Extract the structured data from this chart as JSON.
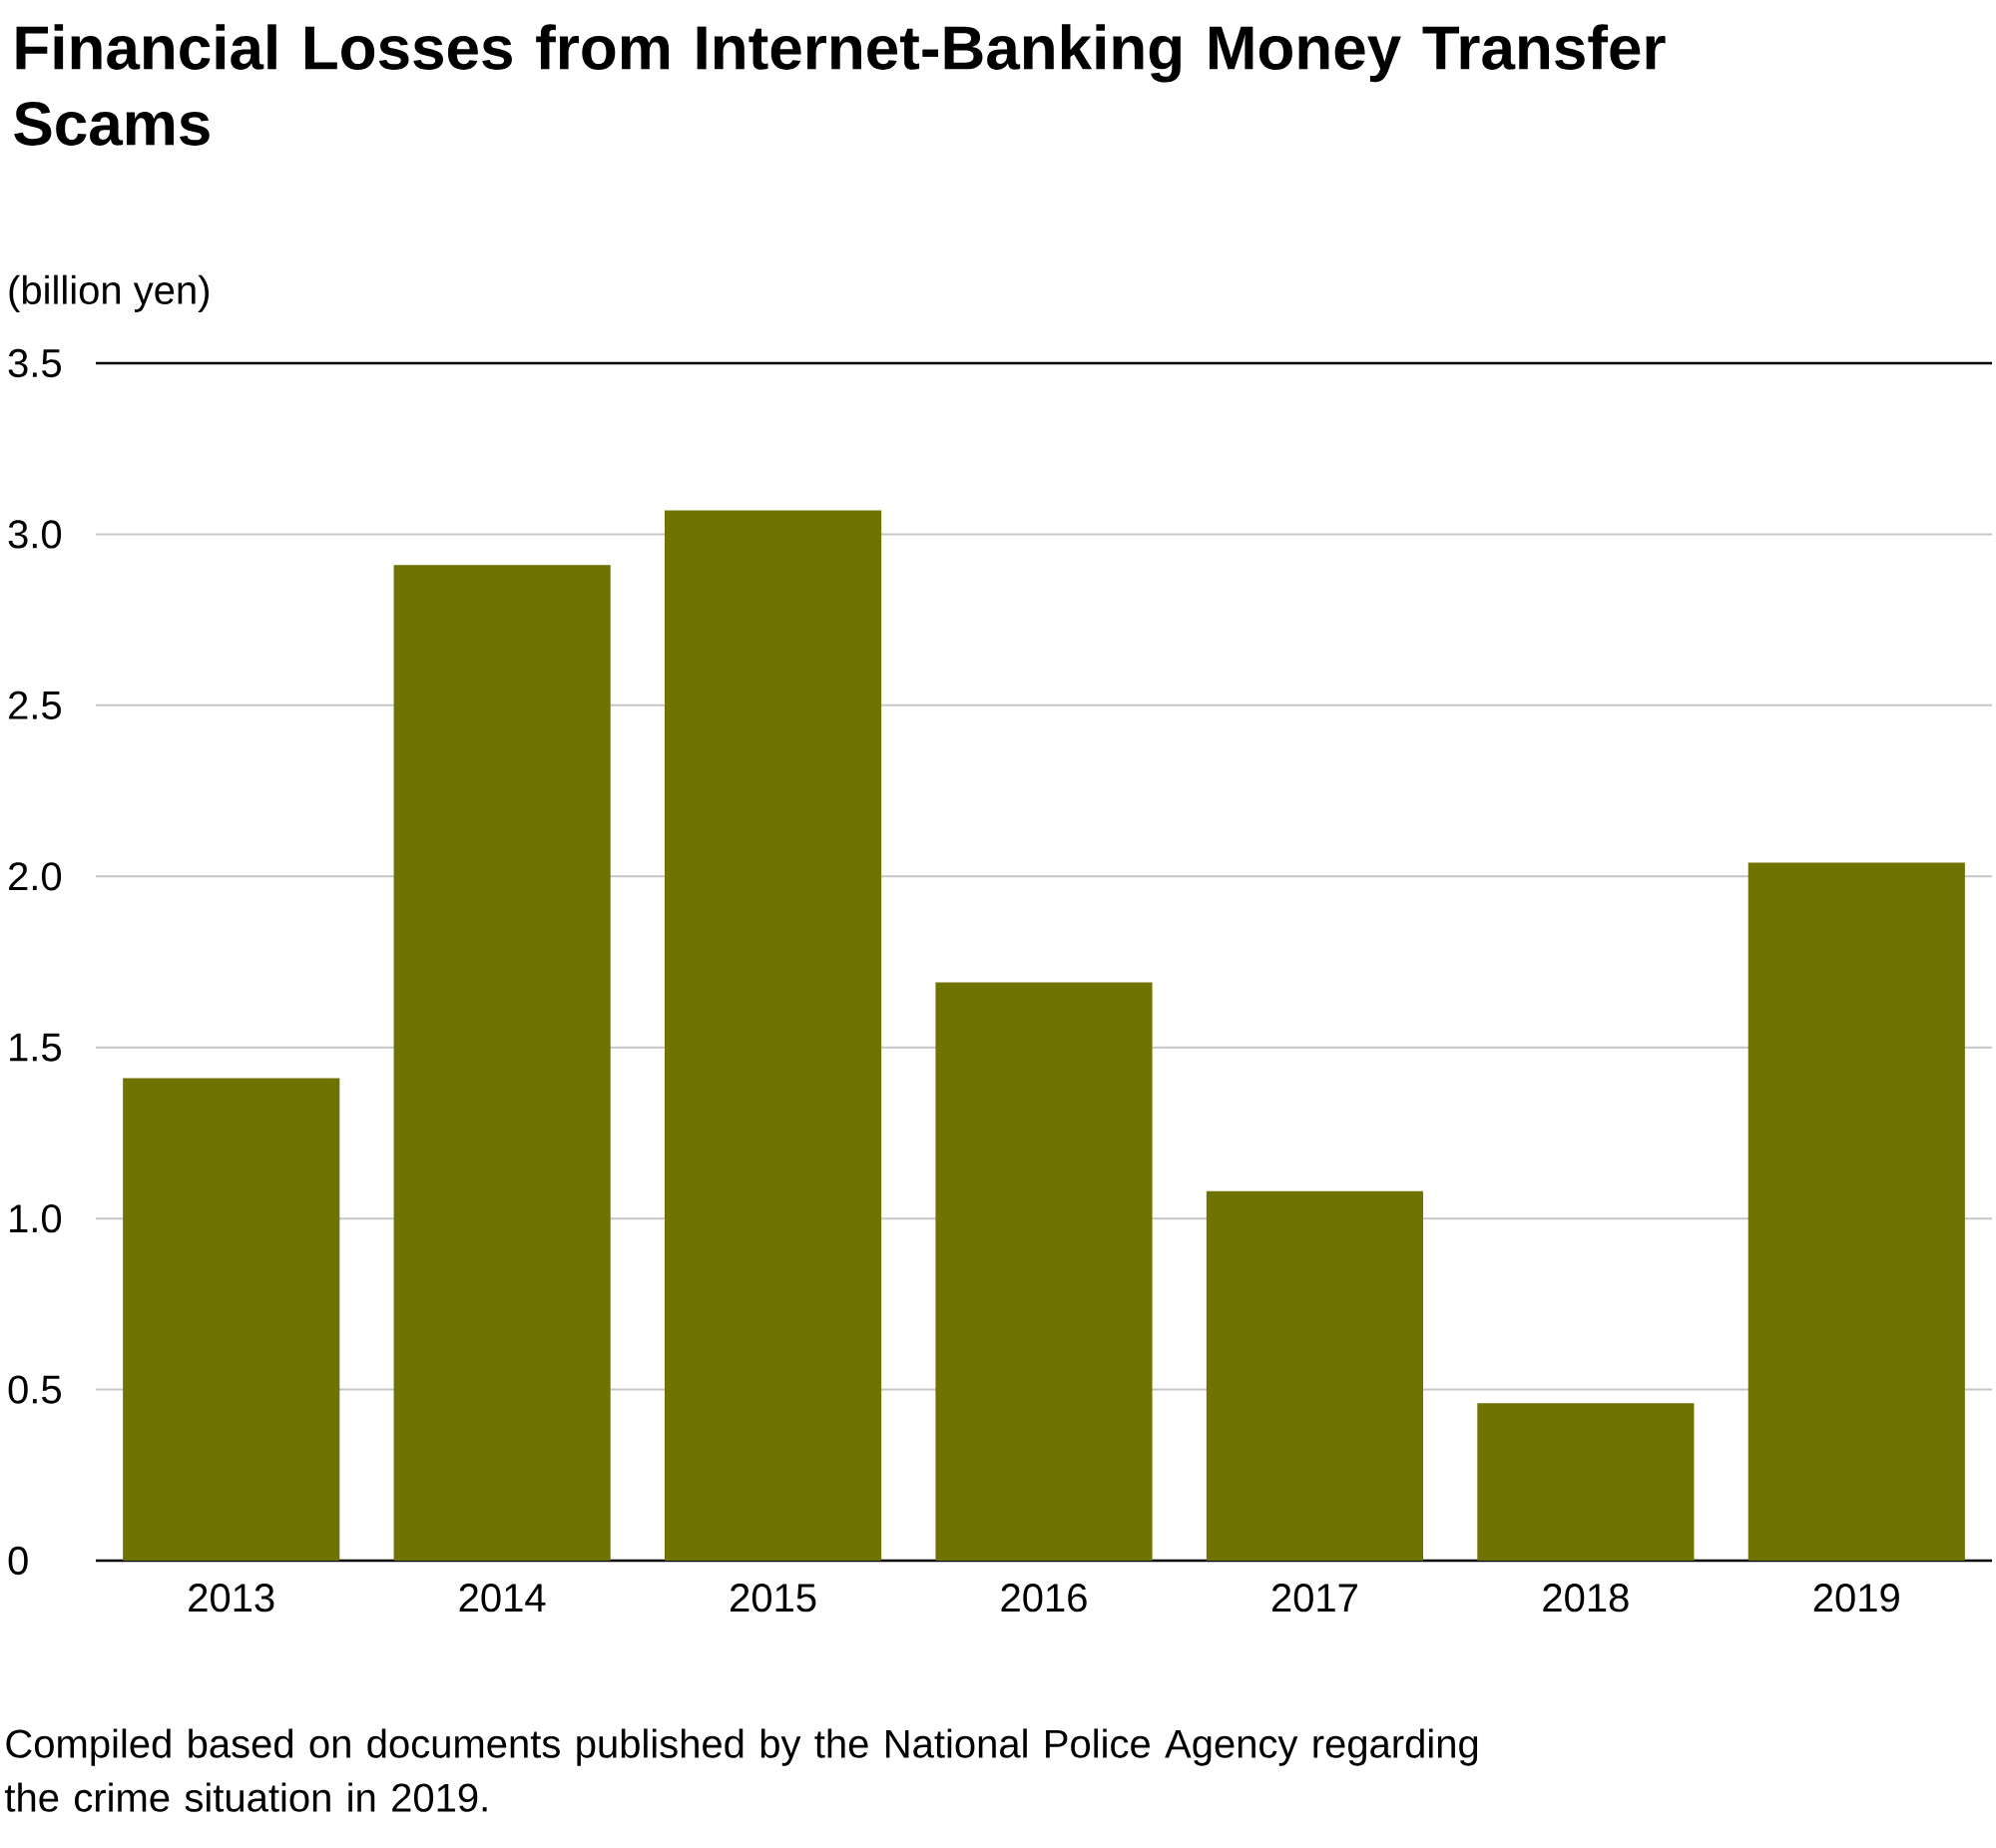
{
  "chart_data": {
    "type": "bar",
    "title": "Financial Losses from Internet-Banking Money Transfer Scams",
    "ylabel": "(billion yen)",
    "categories": [
      "2013",
      "2014",
      "2015",
      "2016",
      "2017",
      "2018",
      "2019"
    ],
    "values": [
      1.41,
      2.91,
      3.07,
      1.69,
      1.08,
      0.46,
      2.04
    ],
    "color": "#6e7302",
    "ylim": [
      0,
      3.5
    ],
    "yticks": [
      {
        "value": 0,
        "label": "0"
      },
      {
        "value": 0.5,
        "label": "0.5"
      },
      {
        "value": 1,
        "label": "1.0"
      },
      {
        "value": 1.5,
        "label": "1.5"
      },
      {
        "value": 2,
        "label": "2.0"
      },
      {
        "value": 2.5,
        "label": "2.5"
      },
      {
        "value": 3,
        "label": "3.0"
      },
      {
        "value": 3.5,
        "label": "3.5"
      }
    ],
    "grid": "y",
    "annotations": [
      "Compiled based on documents published by the National Police Agency regarding the crime situation in 2019."
    ]
  }
}
